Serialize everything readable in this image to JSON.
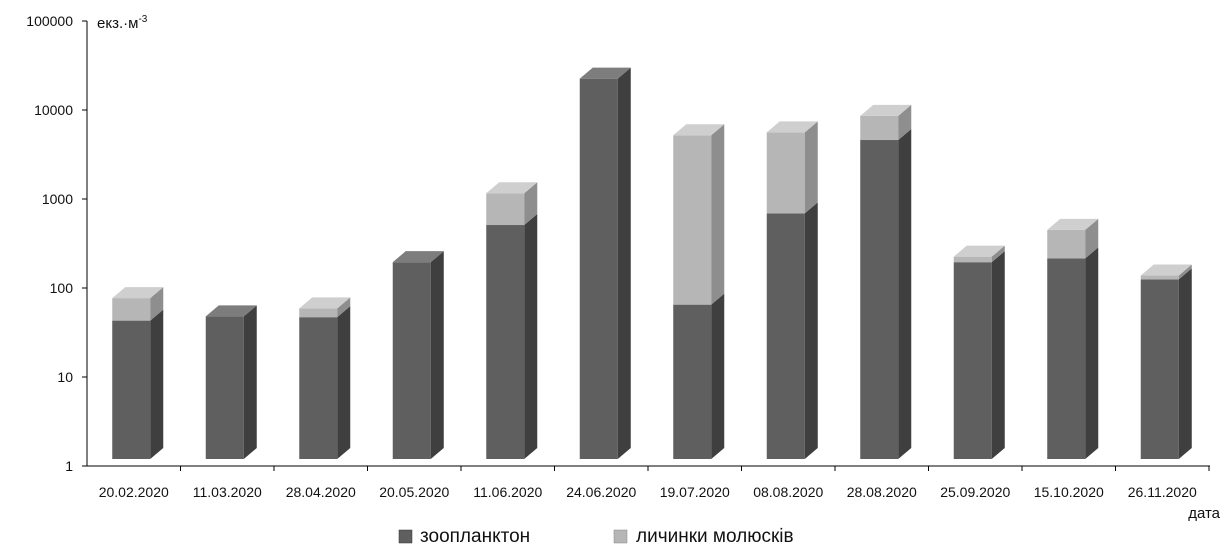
{
  "chart_data": {
    "type": "bar",
    "stacked": true,
    "log_scale": true,
    "style": "3d-columns",
    "categories": [
      "20.02.2020",
      "11.03.2020",
      "28.04.2020",
      "20.05.2020",
      "11.06.2020",
      "24.06.2020",
      "19.07.2020",
      "08.08.2020",
      "28.08.2020",
      "25.09.2020",
      "15.10.2020",
      "26.11.2020"
    ],
    "series": [
      {
        "name": "зоопланктон",
        "color": "#5f5f5f",
        "values": [
          43,
          48,
          47,
          195,
          510,
          22500,
          65,
          690,
          4600,
          195,
          215,
          125
        ]
      },
      {
        "name": "личинки молюсків",
        "color": "#b6b6b6",
        "values": [
          34,
          0,
          12,
          0,
          650,
          0,
          5135,
          4910,
          4000,
          30,
          235,
          13
        ]
      }
    ],
    "y_ticks": [
      "1",
      "10",
      "100",
      "1000",
      "10000",
      "100000"
    ],
    "ylim": [
      1,
      100000
    ],
    "ylabel": "екз.·м",
    "ylabel_superscript": "-3",
    "xlabel": "дата",
    "legend_position": "bottom",
    "grid": false
  }
}
